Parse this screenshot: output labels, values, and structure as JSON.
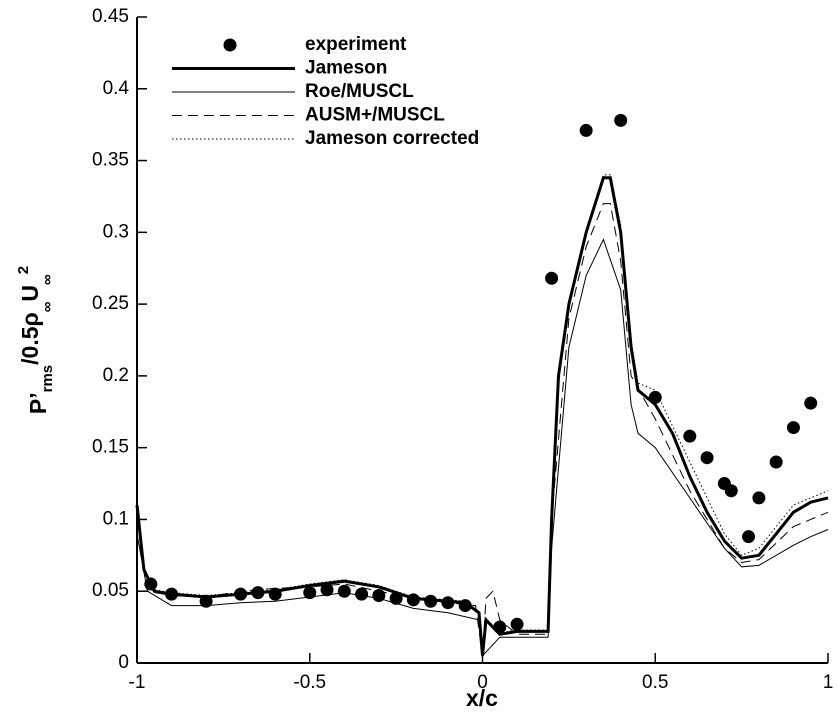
{
  "chart_data": {
    "type": "line",
    "x_label": "x/c",
    "y_label": [
      "P’",
      "rms",
      "/0.5ρ",
      "∞",
      "U",
      "∞",
      "2"
    ],
    "xlim": [
      -1,
      1
    ],
    "xticks": [
      -1,
      -0.5,
      0,
      0.5,
      1
    ],
    "ylim": [
      0,
      0.45
    ],
    "yticks": [
      0,
      0.05,
      0.1,
      0.15,
      0.2,
      0.25,
      0.3,
      0.35,
      0.4,
      0.45
    ],
    "legend": "upper-left",
    "series": [
      {
        "name": "experiment",
        "color": "#000000",
        "marker": "circle",
        "line_style": "none",
        "x": [
          -0.96,
          -0.9,
          -0.8,
          -0.7,
          -0.65,
          -0.6,
          -0.5,
          -0.45,
          -0.4,
          -0.35,
          -0.3,
          -0.25,
          -0.2,
          -0.15,
          -0.1,
          -0.05,
          0.05,
          0.1,
          0.2,
          0.3,
          0.4,
          0.5,
          0.6,
          0.65,
          0.7,
          0.72,
          0.77,
          0.8,
          0.85,
          0.9,
          0.95
        ],
        "values": [
          0.055,
          0.048,
          0.043,
          0.048,
          0.049,
          0.048,
          0.049,
          0.051,
          0.05,
          0.048,
          0.047,
          0.045,
          0.044,
          0.043,
          0.042,
          0.04,
          0.025,
          0.027,
          0.268,
          0.371,
          0.378,
          0.185,
          0.158,
          0.143,
          0.125,
          0.12,
          0.088,
          0.115,
          0.14,
          0.164,
          0.181
        ]
      },
      {
        "name": "Jameson",
        "color": "#000000",
        "line_style": "solid",
        "line_width": 3,
        "x": [
          -1,
          -0.98,
          -0.95,
          -0.9,
          -0.8,
          -0.7,
          -0.6,
          -0.5,
          -0.4,
          -0.3,
          -0.2,
          -0.1,
          -0.05,
          -0.01,
          0,
          0.01,
          0.05,
          0.1,
          0.19,
          0.2,
          0.22,
          0.25,
          0.3,
          0.35,
          0.37,
          0.4,
          0.43,
          0.45,
          0.5,
          0.55,
          0.6,
          0.65,
          0.7,
          0.75,
          0.8,
          0.85,
          0.9,
          0.95,
          1
        ],
        "values": [
          0.11,
          0.065,
          0.05,
          0.048,
          0.046,
          0.048,
          0.05,
          0.054,
          0.057,
          0.053,
          0.045,
          0.043,
          0.042,
          0.035,
          0.005,
          0.03,
          0.02,
          0.022,
          0.022,
          0.1,
          0.2,
          0.25,
          0.3,
          0.338,
          0.338,
          0.3,
          0.22,
          0.19,
          0.18,
          0.16,
          0.13,
          0.105,
          0.085,
          0.073,
          0.075,
          0.09,
          0.105,
          0.112,
          0.115
        ]
      },
      {
        "name": "Roe/MUSCL",
        "color": "#000000",
        "line_style": "solid",
        "line_width": 1,
        "x": [
          -1,
          -0.97,
          -0.9,
          -0.8,
          -0.7,
          -0.6,
          -0.5,
          -0.4,
          -0.3,
          -0.2,
          -0.1,
          -0.01,
          0,
          0.05,
          0.19,
          0.2,
          0.25,
          0.3,
          0.35,
          0.4,
          0.43,
          0.45,
          0.5,
          0.6,
          0.7,
          0.75,
          0.8,
          0.9,
          0.95,
          1
        ],
        "values": [
          0.09,
          0.05,
          0.04,
          0.04,
          0.042,
          0.043,
          0.046,
          0.049,
          0.045,
          0.038,
          0.035,
          0.03,
          0.005,
          0.018,
          0.018,
          0.08,
          0.22,
          0.27,
          0.295,
          0.26,
          0.18,
          0.16,
          0.15,
          0.115,
          0.08,
          0.067,
          0.068,
          0.082,
          0.088,
          0.093
        ]
      },
      {
        "name": "AUSM+/MUSCL",
        "color": "#000000",
        "line_style": "dashed",
        "line_width": 1,
        "x": [
          -1,
          -0.97,
          -0.9,
          -0.8,
          -0.7,
          -0.6,
          -0.5,
          -0.4,
          -0.3,
          -0.2,
          -0.1,
          -0.02,
          0,
          0.01,
          0.03,
          0.05,
          0.1,
          0.19,
          0.2,
          0.25,
          0.3,
          0.35,
          0.37,
          0.4,
          0.43,
          0.5,
          0.6,
          0.7,
          0.75,
          0.8,
          0.9,
          0.95,
          1
        ],
        "values": [
          0.1,
          0.05,
          0.047,
          0.046,
          0.05,
          0.052,
          0.053,
          0.055,
          0.05,
          0.045,
          0.042,
          0.04,
          0.005,
          0.045,
          0.05,
          0.03,
          0.02,
          0.02,
          0.1,
          0.24,
          0.29,
          0.32,
          0.32,
          0.28,
          0.2,
          0.17,
          0.12,
          0.08,
          0.07,
          0.072,
          0.095,
          0.1,
          0.105
        ]
      },
      {
        "name": "Jameson corrected",
        "color": "#000000",
        "line_style": "dotted",
        "line_width": 1,
        "x": [
          -1,
          -0.98,
          -0.95,
          -0.9,
          -0.8,
          -0.7,
          -0.6,
          -0.5,
          -0.4,
          -0.3,
          -0.2,
          -0.1,
          -0.05,
          -0.01,
          0,
          0.01,
          0.05,
          0.1,
          0.19,
          0.2,
          0.22,
          0.25,
          0.3,
          0.35,
          0.37,
          0.4,
          0.43,
          0.45,
          0.5,
          0.6,
          0.7,
          0.75,
          0.8,
          0.9,
          1
        ],
        "values": [
          0.11,
          0.066,
          0.051,
          0.049,
          0.047,
          0.049,
          0.051,
          0.055,
          0.058,
          0.054,
          0.046,
          0.044,
          0.043,
          0.036,
          0.005,
          0.031,
          0.021,
          0.023,
          0.023,
          0.1,
          0.2,
          0.25,
          0.3,
          0.34,
          0.34,
          0.305,
          0.225,
          0.195,
          0.19,
          0.14,
          0.09,
          0.075,
          0.08,
          0.11,
          0.12
        ]
      }
    ]
  }
}
